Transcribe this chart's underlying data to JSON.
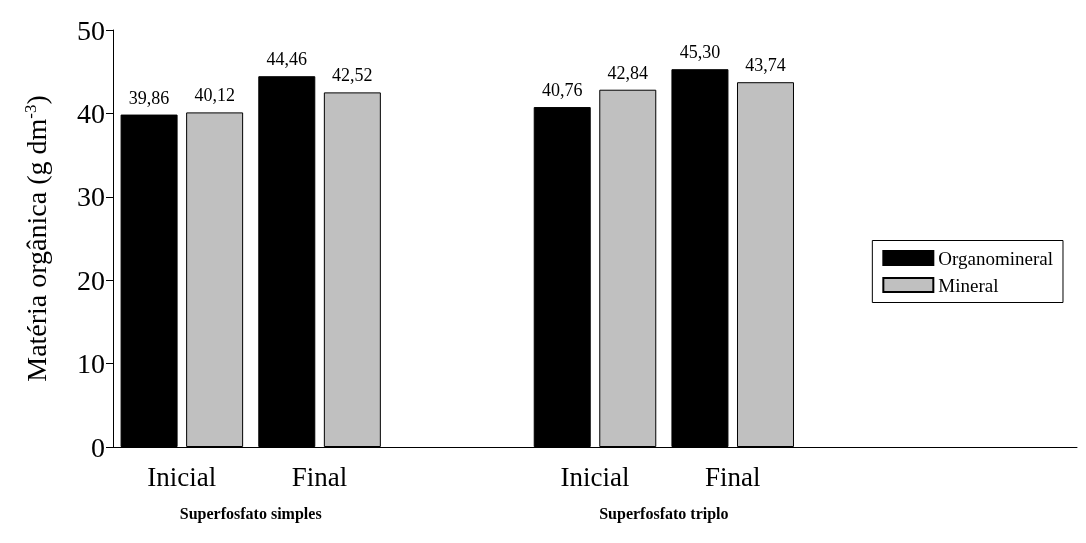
{
  "chart_data": {
    "type": "bar",
    "ylabel": "Matéria orgânica (g dm$^{-3}$)",
    "categories": [
      "Inicial",
      "Final",
      null,
      "Inicial",
      "Final",
      null,
      null
    ],
    "series": [
      {
        "name": "Organomineral",
        "color": "#000000",
        "values": [
          39.86,
          44.46,
          null,
          40.76,
          45.3,
          null,
          null
        ],
        "value_labels": [
          "39,86",
          "44,46",
          null,
          "40,76",
          "45,30",
          null,
          null
        ]
      },
      {
        "name": "Mineral",
        "color": "#c0c0c0",
        "values": [
          40.12,
          42.52,
          null,
          42.84,
          43.74,
          null,
          null
        ],
        "value_labels": [
          "40,12",
          "42,52",
          null,
          "42,84",
          "43,74",
          null,
          null
        ]
      }
    ],
    "ylim": [
      0,
      50
    ],
    "yticks": [
      0,
      10,
      20,
      30,
      40,
      50
    ],
    "grid": false,
    "legend": "right",
    "annotations": [
      "Superfosfato simples",
      "Superfosfato triplo"
    ]
  }
}
